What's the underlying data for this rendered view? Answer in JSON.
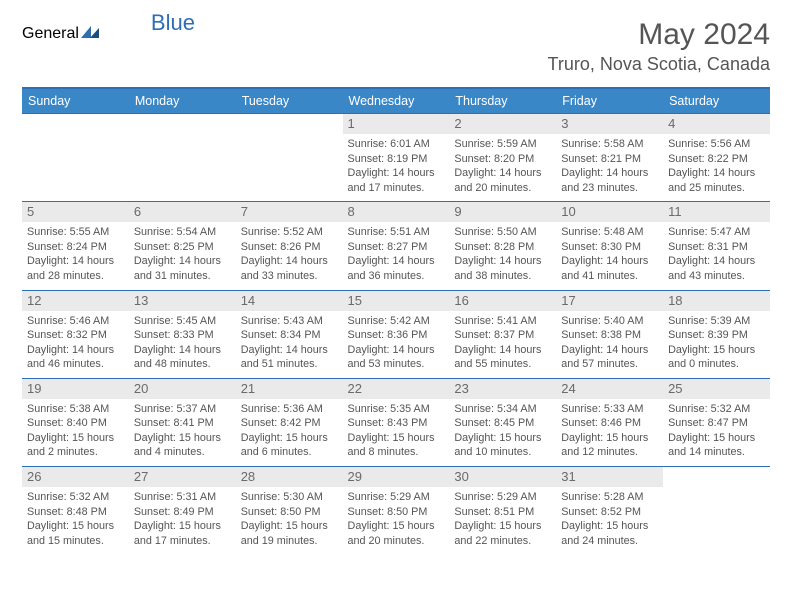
{
  "brand": {
    "part1": "General",
    "part2": "Blue"
  },
  "title": "May 2024",
  "location": "Truro, Nova Scotia, Canada",
  "weekday_header_bg": "#3a87c8",
  "rule_color": "#2e6fb4",
  "daynum_bg": "#eaeaea",
  "weekdays": [
    "Sunday",
    "Monday",
    "Tuesday",
    "Wednesday",
    "Thursday",
    "Friday",
    "Saturday"
  ],
  "cells": [
    [
      "",
      "",
      "",
      {
        "n": "1",
        "sr": "6:01 AM",
        "ss": "8:19 PM",
        "dl": "14 hours and 17 minutes."
      },
      {
        "n": "2",
        "sr": "5:59 AM",
        "ss": "8:20 PM",
        "dl": "14 hours and 20 minutes."
      },
      {
        "n": "3",
        "sr": "5:58 AM",
        "ss": "8:21 PM",
        "dl": "14 hours and 23 minutes."
      },
      {
        "n": "4",
        "sr": "5:56 AM",
        "ss": "8:22 PM",
        "dl": "14 hours and 25 minutes."
      }
    ],
    [
      {
        "n": "5",
        "sr": "5:55 AM",
        "ss": "8:24 PM",
        "dl": "14 hours and 28 minutes."
      },
      {
        "n": "6",
        "sr": "5:54 AM",
        "ss": "8:25 PM",
        "dl": "14 hours and 31 minutes."
      },
      {
        "n": "7",
        "sr": "5:52 AM",
        "ss": "8:26 PM",
        "dl": "14 hours and 33 minutes."
      },
      {
        "n": "8",
        "sr": "5:51 AM",
        "ss": "8:27 PM",
        "dl": "14 hours and 36 minutes."
      },
      {
        "n": "9",
        "sr": "5:50 AM",
        "ss": "8:28 PM",
        "dl": "14 hours and 38 minutes."
      },
      {
        "n": "10",
        "sr": "5:48 AM",
        "ss": "8:30 PM",
        "dl": "14 hours and 41 minutes."
      },
      {
        "n": "11",
        "sr": "5:47 AM",
        "ss": "8:31 PM",
        "dl": "14 hours and 43 minutes."
      }
    ],
    [
      {
        "n": "12",
        "sr": "5:46 AM",
        "ss": "8:32 PM",
        "dl": "14 hours and 46 minutes."
      },
      {
        "n": "13",
        "sr": "5:45 AM",
        "ss": "8:33 PM",
        "dl": "14 hours and 48 minutes."
      },
      {
        "n": "14",
        "sr": "5:43 AM",
        "ss": "8:34 PM",
        "dl": "14 hours and 51 minutes."
      },
      {
        "n": "15",
        "sr": "5:42 AM",
        "ss": "8:36 PM",
        "dl": "14 hours and 53 minutes."
      },
      {
        "n": "16",
        "sr": "5:41 AM",
        "ss": "8:37 PM",
        "dl": "14 hours and 55 minutes."
      },
      {
        "n": "17",
        "sr": "5:40 AM",
        "ss": "8:38 PM",
        "dl": "14 hours and 57 minutes."
      },
      {
        "n": "18",
        "sr": "5:39 AM",
        "ss": "8:39 PM",
        "dl": "15 hours and 0 minutes."
      }
    ],
    [
      {
        "n": "19",
        "sr": "5:38 AM",
        "ss": "8:40 PM",
        "dl": "15 hours and 2 minutes."
      },
      {
        "n": "20",
        "sr": "5:37 AM",
        "ss": "8:41 PM",
        "dl": "15 hours and 4 minutes."
      },
      {
        "n": "21",
        "sr": "5:36 AM",
        "ss": "8:42 PM",
        "dl": "15 hours and 6 minutes."
      },
      {
        "n": "22",
        "sr": "5:35 AM",
        "ss": "8:43 PM",
        "dl": "15 hours and 8 minutes."
      },
      {
        "n": "23",
        "sr": "5:34 AM",
        "ss": "8:45 PM",
        "dl": "15 hours and 10 minutes."
      },
      {
        "n": "24",
        "sr": "5:33 AM",
        "ss": "8:46 PM",
        "dl": "15 hours and 12 minutes."
      },
      {
        "n": "25",
        "sr": "5:32 AM",
        "ss": "8:47 PM",
        "dl": "15 hours and 14 minutes."
      }
    ],
    [
      {
        "n": "26",
        "sr": "5:32 AM",
        "ss": "8:48 PM",
        "dl": "15 hours and 15 minutes."
      },
      {
        "n": "27",
        "sr": "5:31 AM",
        "ss": "8:49 PM",
        "dl": "15 hours and 17 minutes."
      },
      {
        "n": "28",
        "sr": "5:30 AM",
        "ss": "8:50 PM",
        "dl": "15 hours and 19 minutes."
      },
      {
        "n": "29",
        "sr": "5:29 AM",
        "ss": "8:50 PM",
        "dl": "15 hours and 20 minutes."
      },
      {
        "n": "30",
        "sr": "5:29 AM",
        "ss": "8:51 PM",
        "dl": "15 hours and 22 minutes."
      },
      {
        "n": "31",
        "sr": "5:28 AM",
        "ss": "8:52 PM",
        "dl": "15 hours and 24 minutes."
      },
      ""
    ]
  ],
  "labels": {
    "sunrise": "Sunrise:",
    "sunset": "Sunset:",
    "daylight": "Daylight:"
  }
}
